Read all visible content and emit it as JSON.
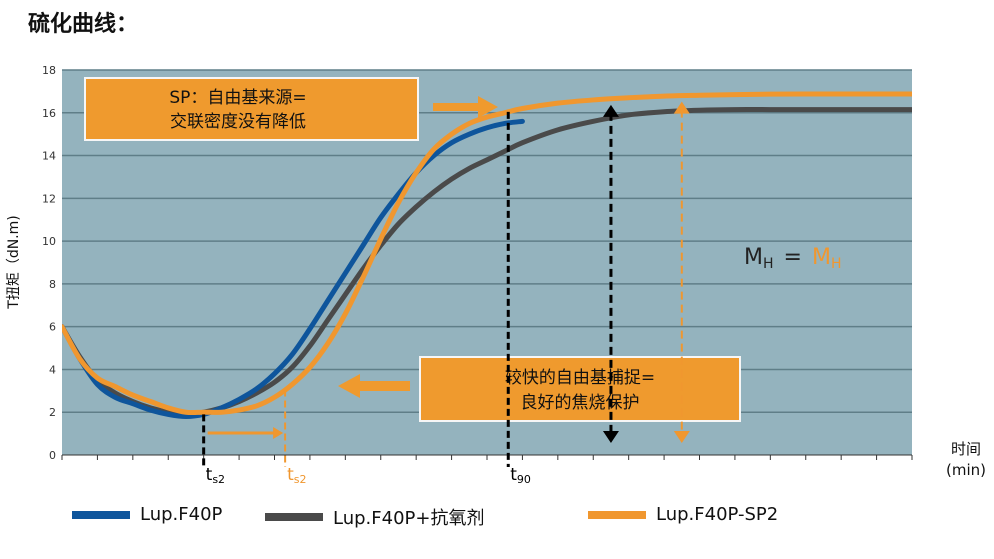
{
  "page": {
    "title": "硫化曲线："
  },
  "colors": {
    "plot_bg": "#94b3be",
    "grid": "#5f7e88",
    "blue": "#0e559c",
    "gray": "#4a4a4a",
    "orange": "#f0972f",
    "callout": "#ef9a2e",
    "dark": "#000000"
  },
  "chart_data": {
    "type": "line",
    "title": "",
    "ylabel": "T扭矩（dN.m)",
    "xlabel": "时间 (min)",
    "xlim": [
      0,
      24
    ],
    "ylim": [
      0,
      18
    ],
    "yticks": [
      "0",
      "2",
      "4",
      "6",
      "8",
      "10",
      "12",
      "14",
      "16",
      "18"
    ],
    "grid": true,
    "legend_position": "bottom",
    "series": [
      {
        "name": "Lup.F40P",
        "color": "#0e559c",
        "x": [
          0,
          0.5,
          1,
          1.5,
          2,
          2.5,
          3,
          3.5,
          4,
          4.5,
          5,
          5.5,
          6,
          6.5,
          7,
          7.5,
          8,
          8.5,
          9,
          9.5,
          10,
          10.5,
          11,
          11.5,
          12,
          12.5,
          13
        ],
        "y": [
          6.0,
          4.5,
          3.3,
          2.7,
          2.4,
          2.1,
          1.9,
          1.8,
          1.9,
          2.2,
          2.6,
          3.1,
          3.8,
          4.7,
          5.9,
          7.2,
          8.5,
          9.8,
          11.1,
          12.2,
          13.2,
          14.0,
          14.6,
          15.0,
          15.3,
          15.5,
          15.6
        ]
      },
      {
        "name": "Lup.F40P+抗氧剂",
        "color": "#4a4a4a",
        "x": [
          0,
          0.5,
          1,
          1.5,
          2,
          2.5,
          3,
          3.5,
          4,
          4.5,
          5,
          5.5,
          6,
          6.5,
          7,
          7.5,
          8,
          8.5,
          9,
          9.5,
          10,
          10.5,
          11,
          11.5,
          12,
          12.5,
          13,
          14,
          15,
          16,
          17,
          18,
          19,
          20,
          21,
          22,
          23,
          24
        ],
        "y": [
          6.0,
          4.6,
          3.5,
          2.9,
          2.5,
          2.2,
          2.0,
          1.9,
          2.0,
          2.2,
          2.5,
          2.9,
          3.4,
          4.1,
          5.1,
          6.3,
          7.5,
          8.7,
          9.8,
          10.8,
          11.6,
          12.3,
          12.9,
          13.4,
          13.8,
          14.2,
          14.6,
          15.2,
          15.6,
          15.9,
          16.05,
          16.12,
          16.15,
          16.15,
          16.15,
          16.15,
          16.15,
          16.15
        ]
      },
      {
        "name": "Lup.F40P-SP2",
        "color": "#f0972f",
        "x": [
          0,
          0.5,
          1,
          1.5,
          2,
          2.5,
          3,
          3.5,
          4,
          4.5,
          5,
          5.5,
          6,
          6.5,
          7,
          7.5,
          8,
          8.5,
          9,
          9.5,
          10,
          10.5,
          11,
          11.5,
          12,
          12.5,
          13,
          14,
          15,
          16,
          17,
          18,
          19,
          20,
          21,
          22,
          23,
          24
        ],
        "y": [
          6.0,
          4.5,
          3.6,
          3.2,
          2.8,
          2.5,
          2.2,
          2.0,
          2.0,
          2.0,
          2.1,
          2.3,
          2.7,
          3.3,
          4.1,
          5.2,
          6.6,
          8.3,
          10.1,
          11.8,
          13.2,
          14.3,
          15.0,
          15.5,
          15.8,
          16.0,
          16.2,
          16.45,
          16.6,
          16.7,
          16.78,
          16.82,
          16.85,
          16.87,
          16.88,
          16.88,
          16.88,
          16.88
        ]
      }
    ],
    "markers": [
      {
        "label": "t",
        "sub": "s2",
        "x": 4.0,
        "color": "#000000"
      },
      {
        "label": "t",
        "sub": "s2",
        "x": 6.3,
        "color": "#f0972f"
      },
      {
        "label": "t",
        "sub": "90",
        "x": 12.6,
        "color": "#000000"
      }
    ],
    "annotations": {
      "sp_box": {
        "line1": "SP：自由基来源=",
        "line2": "交联密度没有降低"
      },
      "radical_box": {
        "line1": "较快的自由基捕捉=",
        "line2": "良好的焦烧保护"
      },
      "mh": {
        "m": "M",
        "h": "H",
        "eq": "="
      }
    }
  }
}
